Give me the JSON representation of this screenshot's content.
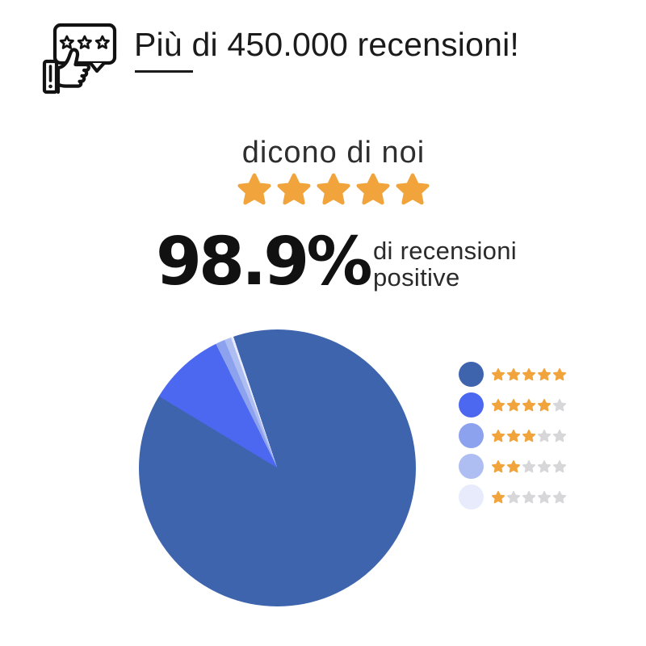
{
  "header": {
    "title": "Più di 450.000 recensioni!",
    "icon": "reviews-thumbs-up-icon"
  },
  "subtitle": {
    "text": "dicono di noi",
    "stars": 5
  },
  "stat": {
    "value": "98.9%",
    "label_line1": "di recensioni",
    "label_line2": "positive"
  },
  "colors": {
    "star_orange": "#F2A43C",
    "star_gray": "#D7D7DA",
    "title_text": "#1B1B1B",
    "body_text": "#2A2A2A"
  },
  "chart_data": {
    "type": "pie",
    "title": "",
    "labels": [
      "5 stelle",
      "4 stelle",
      "3 stelle",
      "2 stelle",
      "1 stella"
    ],
    "values": [
      88.8,
      9.0,
      1.1,
      0.8,
      0.3
    ],
    "colors": [
      "#3D64AD",
      "#4C68F0",
      "#8CA2EE",
      "#AFBEF2",
      "#E7EBFB"
    ],
    "rotation_deg": 341.5,
    "legend_position": "right",
    "legend": [
      {
        "rating": 5
      },
      {
        "rating": 4
      },
      {
        "rating": 3
      },
      {
        "rating": 2
      },
      {
        "rating": 1
      }
    ],
    "stars_total": 5
  }
}
